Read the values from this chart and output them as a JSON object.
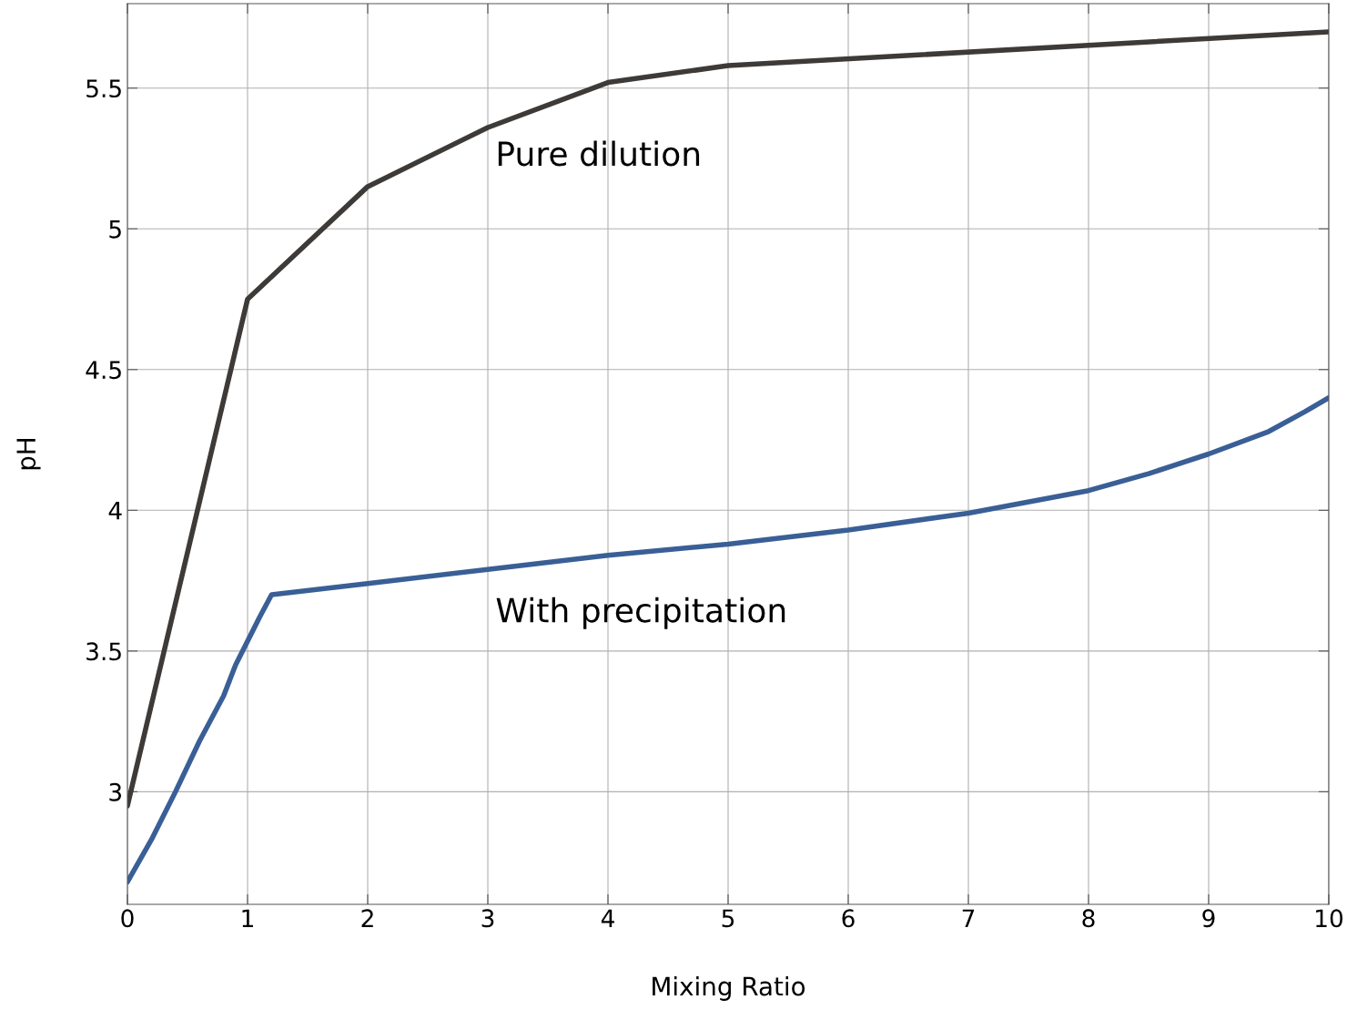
{
  "chart_data": {
    "type": "line",
    "xlabel": "Mixing Ratio",
    "ylabel": "pH",
    "xlim": [
      0,
      10
    ],
    "xticks": [
      0,
      1,
      2,
      3,
      4,
      5,
      6,
      7,
      8,
      9,
      10
    ],
    "ylim": [
      2.6,
      5.8
    ],
    "yticks": [
      3,
      3.5,
      4,
      4.5,
      5,
      5.5
    ],
    "grid": true,
    "legend": false,
    "line_style": "solid",
    "marker": "none",
    "series": [
      {
        "name": "Pure dilution",
        "color": "#3d3a38",
        "x": [
          0,
          1,
          2,
          3,
          4,
          5,
          10
        ],
        "values": [
          2.95,
          4.75,
          5.15,
          5.36,
          5.52,
          5.58,
          5.7
        ]
      },
      {
        "name": "With precipitation",
        "color": "#3a5f96",
        "x": [
          0,
          0.2,
          0.4,
          0.6,
          0.8,
          0.9,
          1.1,
          1.2,
          2,
          3,
          4,
          5,
          6,
          7,
          8,
          8.5,
          9,
          9.5,
          9.8,
          10
        ],
        "values": [
          2.68,
          2.83,
          3.0,
          3.18,
          3.34,
          3.45,
          3.62,
          3.7,
          3.74,
          3.79,
          3.84,
          3.88,
          3.93,
          3.99,
          4.07,
          4.13,
          4.2,
          4.28,
          4.35,
          4.4
        ]
      }
    ]
  }
}
